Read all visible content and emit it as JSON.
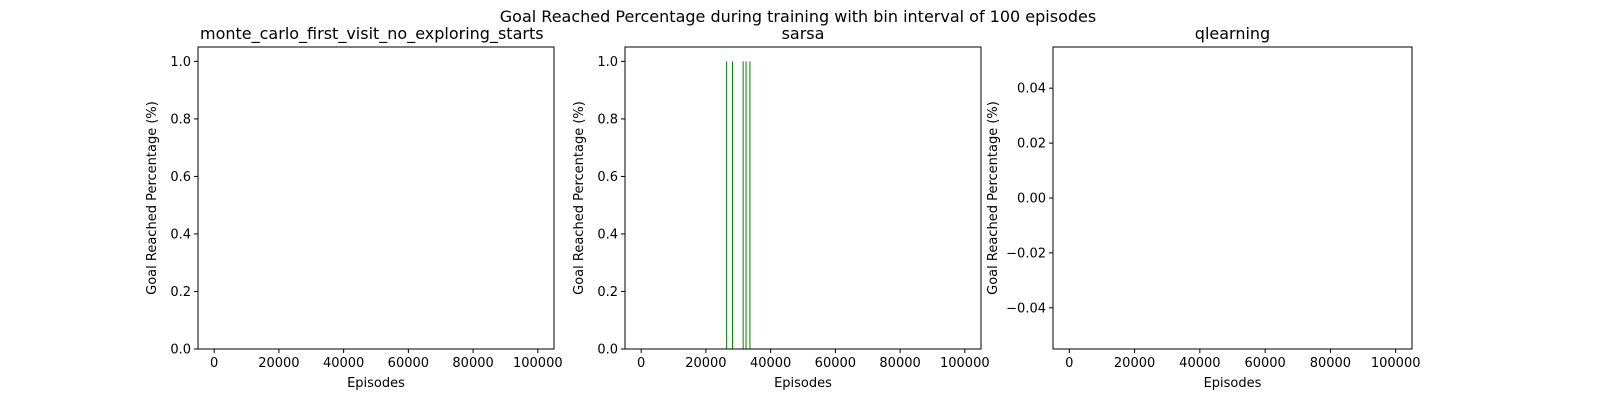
{
  "figure": {
    "suptitle": "Goal Reached Percentage during training with bin interval of 100 episodes"
  },
  "chart_data": [
    {
      "type": "bar",
      "title": "monte_carlo_first_visit_no_exploring_starts",
      "xlabel": "Episodes",
      "ylabel": "Goal Reached Percentage (%)",
      "xlim": [
        -5000,
        105000
      ],
      "ylim": [
        0,
        1.05
      ],
      "xticks": [
        0,
        20000,
        40000,
        60000,
        80000,
        100000
      ],
      "yticks": [
        0.0,
        0.2,
        0.4,
        0.6,
        0.8,
        1.0
      ],
      "ytick_labels": [
        "0.0",
        "0.2",
        "0.4",
        "0.6",
        "0.8",
        "1.0"
      ],
      "bar_color": "#008000",
      "bin_interval": 100,
      "bars": []
    },
    {
      "type": "bar",
      "title": "sarsa",
      "xlabel": "Episodes",
      "ylabel": "Goal Reached Percentage (%)",
      "xlim": [
        -5000,
        105000
      ],
      "ylim": [
        0,
        1.05
      ],
      "xticks": [
        0,
        20000,
        40000,
        60000,
        80000,
        100000
      ],
      "yticks": [
        0.0,
        0.2,
        0.4,
        0.6,
        0.8,
        1.0
      ],
      "ytick_labels": [
        "0.0",
        "0.2",
        "0.4",
        "0.6",
        "0.8",
        "1.0"
      ],
      "bar_color": "#008000",
      "bin_interval": 100,
      "bars": [
        {
          "x": 26400,
          "y": 1.0
        },
        {
          "x": 28200,
          "y": 1.0
        },
        {
          "x": 31500,
          "y": 1.0
        },
        {
          "x": 32400,
          "y": 1.0
        },
        {
          "x": 33600,
          "y": 1.0
        }
      ]
    },
    {
      "type": "bar",
      "title": "qlearning",
      "xlabel": "Episodes",
      "ylabel": "Goal Reached Percentage (%)",
      "xlim": [
        -5000,
        105000
      ],
      "ylim": [
        -0.055,
        0.055
      ],
      "xticks": [
        0,
        20000,
        40000,
        60000,
        80000,
        100000
      ],
      "yticks": [
        -0.04,
        -0.02,
        0.0,
        0.02,
        0.04
      ],
      "ytick_labels": [
        "−0.04",
        "−0.02",
        "0.00",
        "0.02",
        "0.04"
      ],
      "bar_color": "#008000",
      "bin_interval": 100,
      "bars": []
    }
  ]
}
